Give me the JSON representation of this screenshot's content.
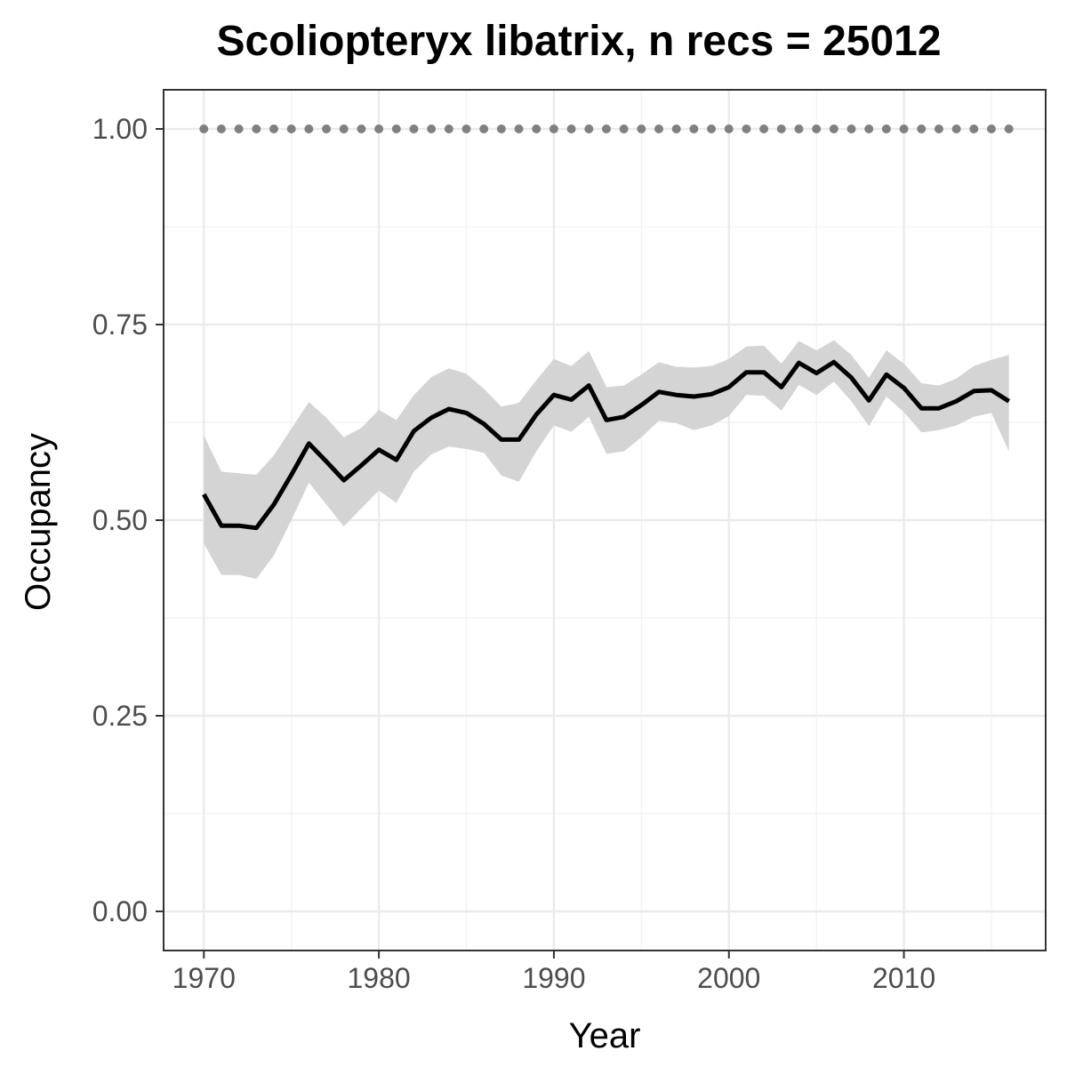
{
  "chart_data": {
    "type": "line",
    "title": "Scoliopteryx libatrix, n recs = 25012",
    "xlabel": "Year",
    "ylabel": "Occupancy",
    "xlim": [
      1967.7,
      2018.1
    ],
    "ylim": [
      -0.05,
      1.05
    ],
    "x_ticks": [
      1970,
      1980,
      1990,
      2000,
      2010
    ],
    "x_tick_labels": [
      "1970",
      "1980",
      "1990",
      "2000",
      "2010"
    ],
    "y_ticks": [
      0,
      0.25,
      0.5,
      0.75,
      1.0
    ],
    "y_tick_labels": [
      "0.00",
      "0.25",
      "0.50",
      "0.75",
      "1.00"
    ],
    "grid": true,
    "colors": {
      "line": "#000000",
      "ribbon": "#d4d4d4",
      "dots": "#808080",
      "grid": "#ebebeb"
    },
    "x": [
      1970,
      1971,
      1972,
      1973,
      1974,
      1975,
      1976,
      1977,
      1978,
      1979,
      1980,
      1981,
      1982,
      1983,
      1984,
      1985,
      1986,
      1987,
      1988,
      1989,
      1990,
      1991,
      1992,
      1993,
      1994,
      1995,
      1996,
      1997,
      1998,
      1999,
      2000,
      2001,
      2002,
      2003,
      2004,
      2005,
      2006,
      2007,
      2008,
      2009,
      2010,
      2011,
      2012,
      2013,
      2014,
      2015,
      2016
    ],
    "series": [
      {
        "type": "line",
        "values": [
          0.533,
          0.493,
          0.493,
          0.49,
          0.52,
          0.558,
          0.598,
          0.575,
          0.551,
          0.57,
          0.59,
          0.577,
          0.614,
          0.631,
          0.642,
          0.637,
          0.623,
          0.603,
          0.603,
          0.635,
          0.66,
          0.654,
          0.672,
          0.628,
          0.632,
          0.647,
          0.664,
          0.66,
          0.658,
          0.661,
          0.67,
          0.689,
          0.689,
          0.67,
          0.701,
          0.688,
          0.702,
          0.682,
          0.653,
          0.686,
          0.669,
          0.643,
          0.643,
          0.652,
          0.665,
          0.666,
          0.652
        ]
      },
      {
        "type": "ribbon",
        "lower": [
          0.47,
          0.43,
          0.43,
          0.425,
          0.455,
          0.5,
          0.548,
          0.52,
          0.492,
          0.515,
          0.538,
          0.522,
          0.562,
          0.584,
          0.594,
          0.591,
          0.586,
          0.557,
          0.549,
          0.588,
          0.621,
          0.613,
          0.632,
          0.585,
          0.588,
          0.606,
          0.627,
          0.624,
          0.615,
          0.621,
          0.633,
          0.66,
          0.659,
          0.64,
          0.673,
          0.66,
          0.677,
          0.652,
          0.62,
          0.658,
          0.638,
          0.612,
          0.615,
          0.621,
          0.632,
          0.637,
          0.588
        ],
        "upper": [
          0.608,
          0.562,
          0.56,
          0.558,
          0.583,
          0.617,
          0.651,
          0.631,
          0.606,
          0.618,
          0.641,
          0.628,
          0.66,
          0.683,
          0.694,
          0.687,
          0.668,
          0.645,
          0.65,
          0.679,
          0.706,
          0.697,
          0.716,
          0.67,
          0.672,
          0.686,
          0.702,
          0.696,
          0.695,
          0.697,
          0.706,
          0.722,
          0.723,
          0.7,
          0.729,
          0.717,
          0.73,
          0.711,
          0.682,
          0.717,
          0.7,
          0.675,
          0.672,
          0.681,
          0.697,
          0.705,
          0.711
        ]
      },
      {
        "type": "dots",
        "values": [
          1,
          1,
          1,
          1,
          1,
          1,
          1,
          1,
          1,
          1,
          1,
          1,
          1,
          1,
          1,
          1,
          1,
          1,
          1,
          1,
          1,
          1,
          1,
          1,
          1,
          1,
          1,
          1,
          1,
          1,
          1,
          1,
          1,
          1,
          1,
          1,
          1,
          1,
          1,
          1,
          1,
          1,
          1,
          1,
          1,
          1,
          1
        ]
      }
    ]
  }
}
